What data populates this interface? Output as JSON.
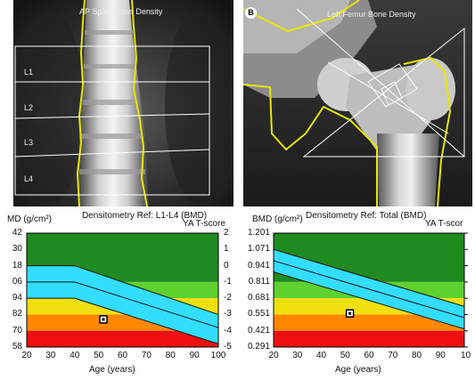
{
  "spine_panel": {
    "title": "AP Spine Bone Density",
    "regions": [
      "L1",
      "L2",
      "L3",
      "L4"
    ]
  },
  "femur_panel": {
    "badge": "B",
    "title": "Left Femur Bone Density"
  },
  "charts": [
    {
      "left_label": "MD (g/cm²)",
      "center_label": "Densitometry Ref: L1-L4 (BMD)",
      "right_label": "YA T-score",
      "xlabel": "Age (years)",
      "x_ticks": [
        "20",
        "30",
        "40",
        "50",
        "60",
        "70",
        "80",
        "90",
        "100"
      ],
      "y_ticks": [
        "42",
        "30",
        "18",
        "06",
        "94",
        "82",
        "70",
        "58"
      ],
      "right_ticks": [
        "2",
        "1",
        "0",
        "-1",
        "-2",
        "-3",
        "-4",
        "-5"
      ]
    },
    {
      "left_label": "BMD (g/cm²)",
      "center_label": "Densitometry Ref: Total (BMD)",
      "right_label": "YA T-scor",
      "xlabel": "Age (years)",
      "x_ticks": [
        "20",
        "30",
        "40",
        "50",
        "60",
        "70",
        "80",
        "90",
        "10"
      ],
      "y_ticks": [
        "1.201",
        "1.071",
        "0.941",
        "0.811",
        "0.681",
        "0.551",
        "0.421",
        "0.291"
      ],
      "right_ticks": []
    }
  ],
  "chart_data": [
    {
      "type": "line",
      "title": "Densitometry Ref: L1-L4 (BMD)",
      "xlabel": "Age (years)",
      "ylabel": "MD (g/cm²)",
      "xlim": [
        20,
        100
      ],
      "y_tick_labels": [
        "42",
        "30",
        "18",
        "06",
        "94",
        "82",
        "70",
        "58"
      ],
      "t_score_axis": [
        2,
        1,
        0,
        -1,
        -2,
        -3,
        -4,
        -5
      ],
      "zones_t": [
        {
          "from": 2,
          "to": -1,
          "color": "#1f8a1f"
        },
        {
          "from": -1,
          "to": -2,
          "color": "#5fd12e"
        },
        {
          "from": -2,
          "to": -3,
          "color": "#f0e010"
        },
        {
          "from": -3,
          "to": -4,
          "color": "#ff8800"
        },
        {
          "from": -4,
          "to": -5,
          "color": "#ee1010"
        }
      ],
      "reference_band_t": {
        "x": [
          20,
          40,
          100
        ],
        "upper": [
          0,
          0,
          -3
        ],
        "mean": [
          -1,
          -1,
          -3.8
        ],
        "lower": [
          -2,
          -2,
          -4.8
        ],
        "color": "#33ddff"
      },
      "patient_point": {
        "x": 52,
        "t": -3.3
      }
    },
    {
      "type": "line",
      "title": "Densitometry Ref: Total (BMD)",
      "xlabel": "Age (years)",
      "ylabel": "BMD (g/cm²)",
      "xlim": [
        20,
        100
      ],
      "ylim": [
        0.291,
        1.201
      ],
      "zones": [
        {
          "from": 1.201,
          "to": 0.811,
          "color": "#1f8a1f"
        },
        {
          "from": 0.811,
          "to": 0.681,
          "color": "#5fd12e"
        },
        {
          "from": 0.681,
          "to": 0.551,
          "color": "#f0e010"
        },
        {
          "from": 0.551,
          "to": 0.421,
          "color": "#ff8800"
        },
        {
          "from": 0.421,
          "to": 0.291,
          "color": "#ee1010"
        }
      ],
      "reference_band": {
        "x": [
          20,
          100
        ],
        "upper": [
          1.071,
          0.616
        ],
        "mean": [
          0.981,
          0.526
        ],
        "lower": [
          0.891,
          0.436
        ],
        "color": "#33ddff"
      },
      "patient_point": {
        "x": 52,
        "y": 0.56
      }
    }
  ]
}
